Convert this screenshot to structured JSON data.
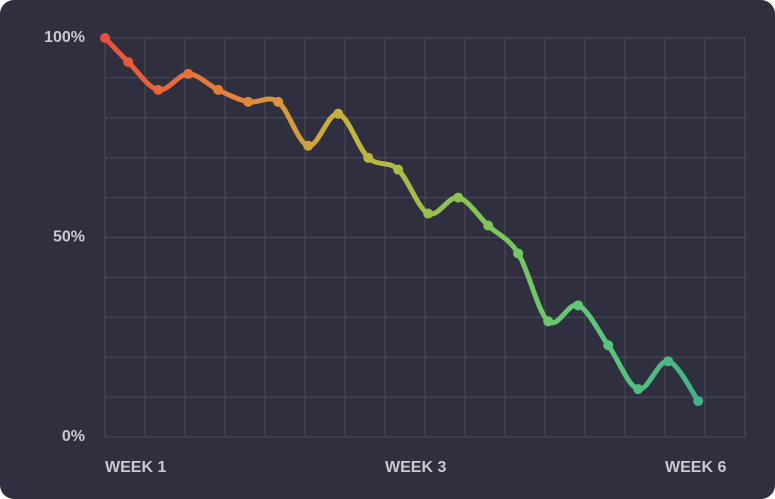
{
  "chart_data": {
    "type": "line",
    "x": [
      0,
      0.58,
      1.33,
      2.08,
      2.83,
      3.58,
      4.33,
      5.08,
      5.83,
      6.58,
      7.33,
      8.08,
      8.83,
      9.58,
      10.33,
      11.08,
      11.83,
      12.58,
      13.33,
      14.08,
      14.83
    ],
    "values": [
      100,
      94,
      87,
      91,
      87,
      84,
      84,
      73,
      81,
      70,
      67,
      56,
      60,
      53,
      46,
      29,
      33,
      23,
      12,
      19,
      9
    ],
    "colors": [
      "#ea4f3c",
      "#e5803b",
      "#c4b43e",
      "#86c552",
      "#5fc77a",
      "#3fb08c"
    ],
    "xlim": [
      0,
      16
    ],
    "ylim": [
      0,
      100
    ],
    "xticks": [
      {
        "value": 0,
        "label": "WEEK 1"
      },
      {
        "value": 7,
        "label": "WEEK 3"
      },
      {
        "value": 14,
        "label": "WEEK 6"
      }
    ],
    "yticks": [
      {
        "value": 0,
        "label": "0%"
      },
      {
        "value": 50,
        "label": "50%"
      },
      {
        "value": 100,
        "label": "100%"
      }
    ],
    "xgrid": [
      0,
      1,
      2,
      3,
      4,
      5,
      6,
      7,
      8,
      9,
      10,
      11,
      12,
      13,
      14,
      15,
      16
    ],
    "ygrid": [
      0,
      10,
      20,
      30,
      40,
      50,
      60,
      70,
      80,
      90,
      100
    ],
    "grid": true
  }
}
